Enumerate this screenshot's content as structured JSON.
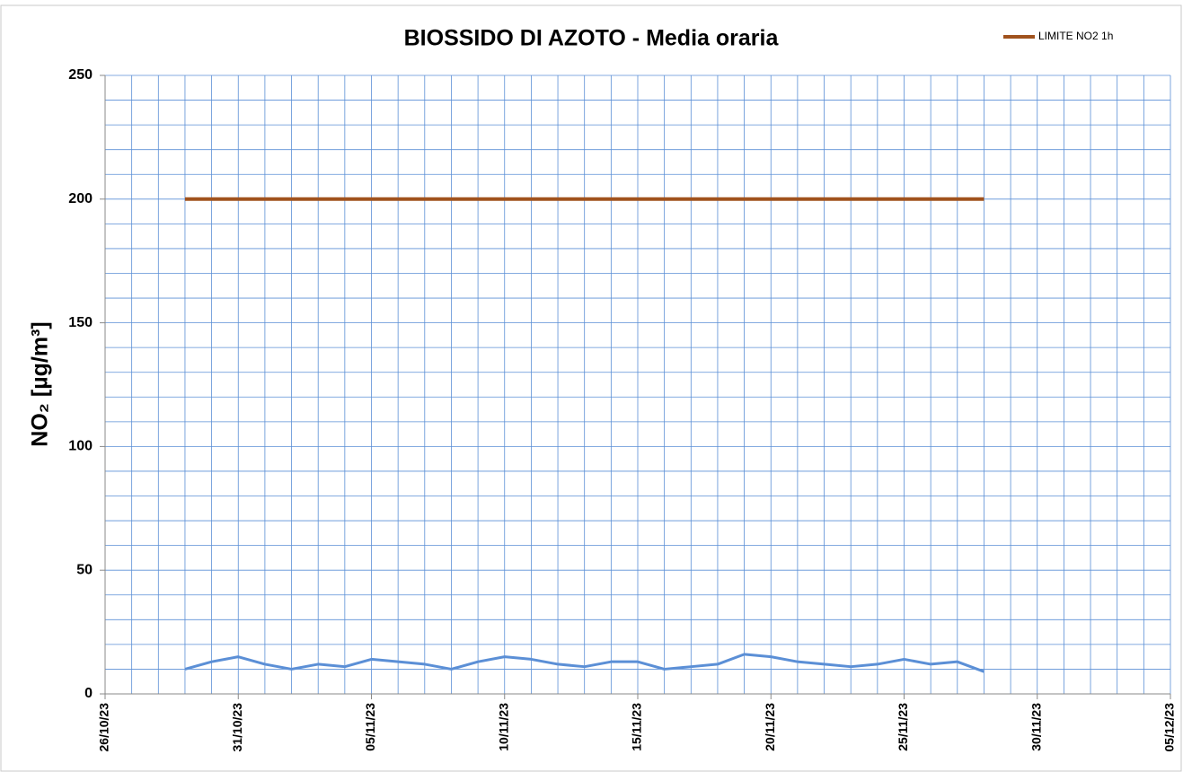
{
  "chart_data": {
    "type": "line",
    "title": "BIOSSIDO DI AZOTO - Media oraria",
    "y_label": "NO₂ [µg/m³]",
    "x": [
      "29/10/23",
      "30/10/23",
      "31/10/23",
      "01/11/23",
      "02/11/23",
      "03/11/23",
      "04/11/23",
      "05/11/23",
      "06/11/23",
      "07/11/23",
      "08/11/23",
      "09/11/23",
      "10/11/23",
      "11/11/23",
      "12/11/23",
      "13/11/23",
      "14/11/23",
      "15/11/23",
      "16/11/23",
      "17/11/23",
      "18/11/23",
      "19/11/23",
      "20/11/23",
      "21/11/23",
      "22/11/23",
      "23/11/23",
      "24/11/23",
      "25/11/23",
      "26/11/23",
      "27/11/23",
      "28/11/23"
    ],
    "series": [
      {
        "color": "#5b8fd6",
        "values": [
          10,
          13,
          15,
          12,
          10,
          12,
          11,
          14,
          13,
          12,
          10,
          13,
          15,
          14,
          12,
          11,
          13,
          13,
          10,
          11,
          12,
          16,
          15,
          13,
          12,
          11,
          12,
          14,
          12,
          13,
          9
        ]
      },
      {
        "name": "LIMITE NO2 1h",
        "color": "#a0521d",
        "values": [
          200,
          200,
          200,
          200,
          200,
          200,
          200,
          200,
          200,
          200,
          200,
          200,
          200,
          200,
          200,
          200,
          200,
          200,
          200,
          200,
          200,
          200,
          200,
          200,
          200,
          200,
          200,
          200,
          200,
          200,
          200
        ]
      }
    ],
    "xlim": [
      "26/10/23",
      "05/12/23"
    ],
    "xticks": [
      "26/10/23",
      "31/10/23",
      "05/11/23",
      "10/11/23",
      "15/11/23",
      "20/11/23",
      "25/11/23",
      "30/11/23",
      "05/12/23"
    ],
    "ylim": [
      0,
      250
    ],
    "yticks": [
      0,
      50,
      100,
      150,
      200,
      250
    ],
    "yminor_ticks": [
      10,
      20,
      30,
      40,
      60,
      70,
      80,
      90,
      110,
      120,
      130,
      140,
      160,
      170,
      180,
      190,
      210,
      220,
      230,
      240
    ],
    "xgrid": "daily",
    "legend": "top-right"
  }
}
